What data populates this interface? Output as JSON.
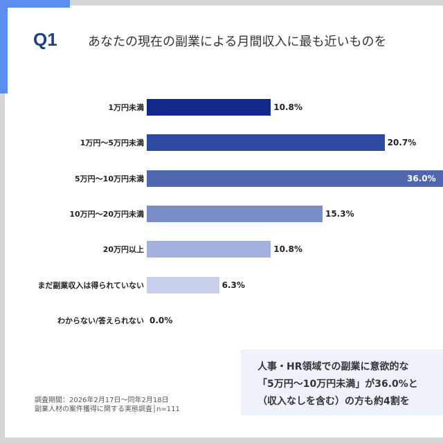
{
  "header": {
    "question_no": "Q1",
    "title": "あなたの現在の副業による月間収入に最も近いものを"
  },
  "chart_data": {
    "type": "bar",
    "orientation": "horizontal",
    "categories": [
      "1万円未満",
      "1万円〜5万円未満",
      "5万円〜10万円未満",
      "10万円〜20万円未満",
      "20万円以上",
      "まだ副業収入は得られていない",
      "わからない/答えられない"
    ],
    "values": [
      10.8,
      20.7,
      36.0,
      15.3,
      10.8,
      6.3,
      0.0
    ],
    "value_labels": [
      "10.8%",
      "20.7%",
      "36.0%",
      "15.3%",
      "10.8%",
      "6.3%",
      "0.0%"
    ],
    "colors": [
      "#10298a",
      "#2e4aa0",
      "#5068b0",
      "#7b8dc6",
      "#a5b1dc",
      "#c8d1ec",
      "#dde3f3"
    ],
    "grid": false
  },
  "callout": {
    "lines": [
      "人事・HR領域での副業に意欲的な",
      "「5万円〜10万円未満」が36.0%と",
      "（収入なしを含む）の方も約4割を"
    ]
  },
  "footnote": {
    "period": "調査期間：2026年2月17日〜同年2月18日",
    "survey": "副業人材の案件獲得に関する実態調査│n=111"
  }
}
